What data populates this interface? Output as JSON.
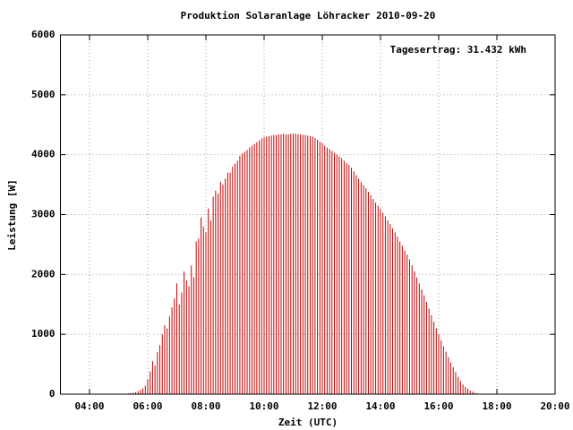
{
  "chart_data": {
    "type": "impulse",
    "title": "Produktion Solaranlage Löhracker 2010-09-20",
    "annotation": "Tagesertrag: 31.432 kWh",
    "xlabel": "Zeit (UTC)",
    "ylabel": "Leistung [W]",
    "color": "#cc0000",
    "grid": true,
    "xlim": [
      180,
      1200
    ],
    "xticks": [
      {
        "value": 240,
        "label": "04:00"
      },
      {
        "value": 360,
        "label": "06:00"
      },
      {
        "value": 480,
        "label": "08:00"
      },
      {
        "value": 600,
        "label": "10:00"
      },
      {
        "value": 720,
        "label": "12:00"
      },
      {
        "value": 840,
        "label": "14:00"
      },
      {
        "value": 960,
        "label": "16:00"
      },
      {
        "value": 1080,
        "label": "18:00"
      },
      {
        "value": 1200,
        "label": "20:00"
      }
    ],
    "ylim": [
      0,
      6000
    ],
    "yticks": [
      0,
      1000,
      2000,
      3000,
      4000,
      5000,
      6000
    ],
    "x": [
      300,
      305,
      310,
      315,
      320,
      325,
      330,
      335,
      340,
      345,
      350,
      355,
      360,
      365,
      370,
      375,
      380,
      385,
      390,
      395,
      400,
      405,
      410,
      415,
      420,
      425,
      430,
      435,
      440,
      445,
      450,
      455,
      460,
      465,
      470,
      475,
      480,
      485,
      490,
      495,
      500,
      505,
      510,
      515,
      520,
      525,
      530,
      535,
      540,
      545,
      550,
      555,
      560,
      565,
      570,
      575,
      580,
      585,
      590,
      595,
      600,
      605,
      610,
      615,
      620,
      625,
      630,
      635,
      640,
      645,
      650,
      655,
      660,
      665,
      670,
      675,
      680,
      685,
      690,
      695,
      700,
      705,
      710,
      715,
      720,
      725,
      730,
      735,
      740,
      745,
      750,
      755,
      760,
      765,
      770,
      775,
      780,
      785,
      790,
      795,
      800,
      805,
      810,
      815,
      820,
      825,
      830,
      835,
      840,
      845,
      850,
      855,
      860,
      865,
      870,
      875,
      880,
      885,
      890,
      895,
      900,
      905,
      910,
      915,
      920,
      925,
      930,
      935,
      940,
      945,
      950,
      955,
      960,
      965,
      970,
      975,
      980,
      985,
      990,
      995,
      1000,
      1005,
      1010,
      1015,
      1020,
      1025,
      1030,
      1035,
      1040,
      1045,
      1050
    ],
    "values": [
      0,
      2,
      5,
      8,
      12,
      18,
      25,
      35,
      50,
      70,
      100,
      140,
      250,
      380,
      550,
      480,
      700,
      820,
      1000,
      1150,
      1100,
      1300,
      1450,
      1600,
      1850,
      1500,
      1700,
      2050,
      1900,
      1800,
      2150,
      1950,
      2550,
      2600,
      2950,
      2800,
      2700,
      3100,
      2900,
      3300,
      3400,
      3350,
      3550,
      3500,
      3600,
      3700,
      3700,
      3800,
      3850,
      3900,
      3980,
      4020,
      4050,
      4080,
      4120,
      4150,
      4180,
      4210,
      4240,
      4270,
      4290,
      4300,
      4310,
      4320,
      4330,
      4330,
      4340,
      4340,
      4350,
      4340,
      4340,
      4350,
      4350,
      4350,
      4340,
      4340,
      4330,
      4330,
      4320,
      4310,
      4300,
      4280,
      4250,
      4220,
      4190,
      4150,
      4120,
      4090,
      4060,
      4030,
      4000,
      3970,
      3940,
      3900,
      3860,
      3830,
      3780,
      3720,
      3660,
      3600,
      3540,
      3490,
      3440,
      3380,
      3320,
      3260,
      3200,
      3150,
      3100,
      3030,
      2970,
      2900,
      2840,
      2770,
      2700,
      2630,
      2550,
      2480,
      2400,
      2330,
      2250,
      2150,
      2050,
      1950,
      1850,
      1750,
      1650,
      1540,
      1430,
      1320,
      1210,
      1100,
      1000,
      900,
      800,
      710,
      620,
      530,
      450,
      370,
      290,
      220,
      160,
      120,
      90,
      60,
      40,
      25,
      15,
      8,
      3
    ]
  }
}
